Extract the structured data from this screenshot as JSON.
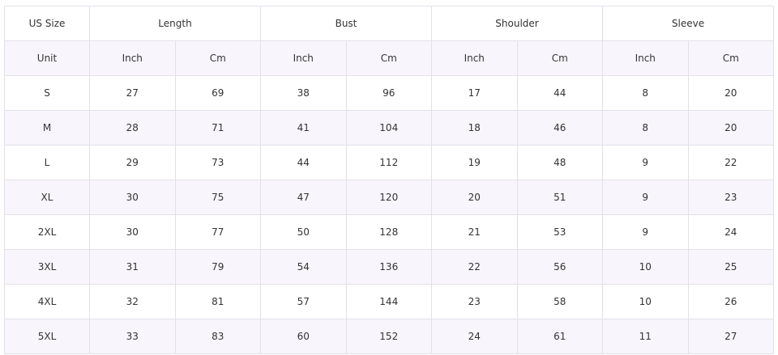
{
  "header": {
    "size_label": "US Size",
    "groups": [
      "Length",
      "Bust",
      "Shoulder",
      "Sleeve"
    ]
  },
  "units": {
    "label": "Unit",
    "values": [
      "Inch",
      "Cm",
      "Inch",
      "Cm",
      "Inch",
      "Cm",
      "Inch",
      "Cm"
    ]
  },
  "rows": [
    {
      "size": "S",
      "values": [
        "27",
        "69",
        "38",
        "96",
        "17",
        "44",
        "8",
        "20"
      ]
    },
    {
      "size": "M",
      "values": [
        "28",
        "71",
        "41",
        "104",
        "18",
        "46",
        "8",
        "20"
      ]
    },
    {
      "size": "L",
      "values": [
        "29",
        "73",
        "44",
        "112",
        "19",
        "48",
        "9",
        "22"
      ]
    },
    {
      "size": "XL",
      "values": [
        "30",
        "75",
        "47",
        "120",
        "20",
        "51",
        "9",
        "23"
      ]
    },
    {
      "size": "2XL",
      "values": [
        "30",
        "77",
        "50",
        "128",
        "21",
        "53",
        "9",
        "24"
      ]
    },
    {
      "size": "3XL",
      "values": [
        "31",
        "79",
        "54",
        "136",
        "22",
        "56",
        "10",
        "25"
      ]
    },
    {
      "size": "4XL",
      "values": [
        "32",
        "81",
        "57",
        "144",
        "23",
        "58",
        "10",
        "26"
      ]
    },
    {
      "size": "5XL",
      "values": [
        "33",
        "83",
        "60",
        "152",
        "24",
        "61",
        "11",
        "27"
      ]
    }
  ],
  "colors": {
    "border": "#e3e0e8",
    "shade": "#f8f5fc"
  }
}
